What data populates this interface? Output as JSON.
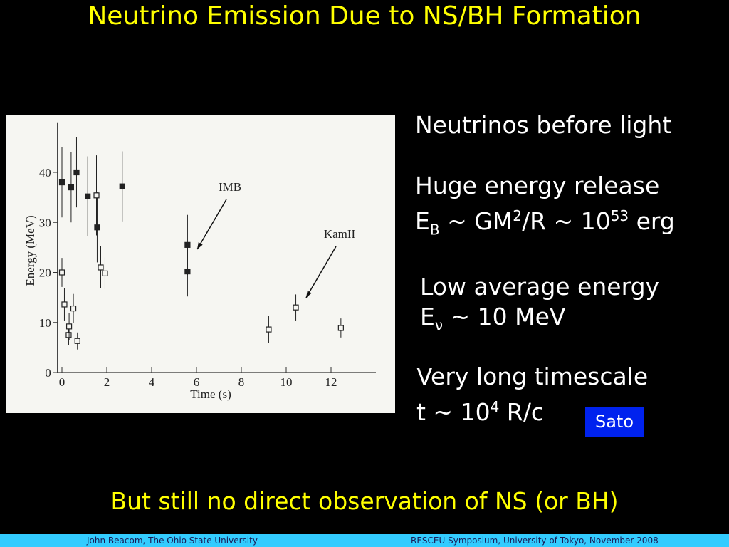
{
  "title": "Neutrino Emission Due to NS/BH Formation",
  "chart_data": {
    "type": "scatter",
    "xlabel": "Time (s)",
    "ylabel": "Energy (MeV)",
    "xlim": [
      -0.2,
      14
    ],
    "ylim": [
      0,
      50
    ],
    "xticks": [
      0,
      2,
      4,
      6,
      8,
      10,
      12
    ],
    "yticks": [
      0,
      10,
      20,
      30,
      40
    ],
    "series": [
      {
        "name": "IMB",
        "marker": "filled",
        "color": "#222222",
        "x": [
          0.0,
          0.41,
          0.65,
          1.15,
          1.57,
          2.69,
          5.6,
          5.6
        ],
        "values": [
          38,
          37,
          40,
          35.2,
          29,
          37.2,
          25.5,
          20.2
        ],
        "errors": [
          7,
          7,
          7,
          8,
          7,
          7,
          6,
          5
        ]
      },
      {
        "name": "KamII",
        "marker": "open",
        "color": "#222222",
        "x": [
          0.0,
          0.11,
          0.3,
          0.32,
          0.51,
          0.69,
          1.54,
          1.73,
          1.92,
          9.22,
          10.43,
          12.44
        ],
        "values": [
          20,
          13.6,
          7.5,
          9.2,
          12.8,
          6.3,
          35.4,
          21,
          19.8,
          8.6,
          13,
          8.9
        ],
        "errors": [
          2.9,
          3.2,
          2,
          2.7,
          2.9,
          1.7,
          8,
          4.2,
          3.2,
          2.7,
          2.6,
          1.9
        ]
      }
    ]
  },
  "bullets": [
    [
      [
        {
          "text": "Neutrinos before light"
        }
      ]
    ],
    [
      [
        {
          "text": "Huge energy release"
        }
      ],
      [
        {
          "text": "E"
        },
        {
          "sub": "B"
        },
        {
          "text": " ~ GM"
        },
        {
          "sup": "2"
        },
        {
          "text": "/R ~ 10"
        },
        {
          "sup": "53"
        },
        {
          "text": " erg"
        }
      ]
    ],
    [
      [
        {
          "text": "Low average energy"
        }
      ],
      [
        {
          "text": "E"
        },
        {
          "sub": "ν"
        },
        {
          "text": " ~ 10 MeV"
        }
      ]
    ],
    [
      [
        {
          "text": "Very long timescale"
        }
      ],
      [
        {
          "text": "t ~ 10"
        },
        {
          "sup": "4"
        },
        {
          "text": " R/c"
        }
      ]
    ]
  ],
  "badge": "Sato",
  "conclusion": "But still no direct observation of NS (or BH)",
  "footer": {
    "left": "John Beacom, The Ohio State University",
    "right": "RESCEU Symposium, University of Tokyo, November 2008"
  }
}
